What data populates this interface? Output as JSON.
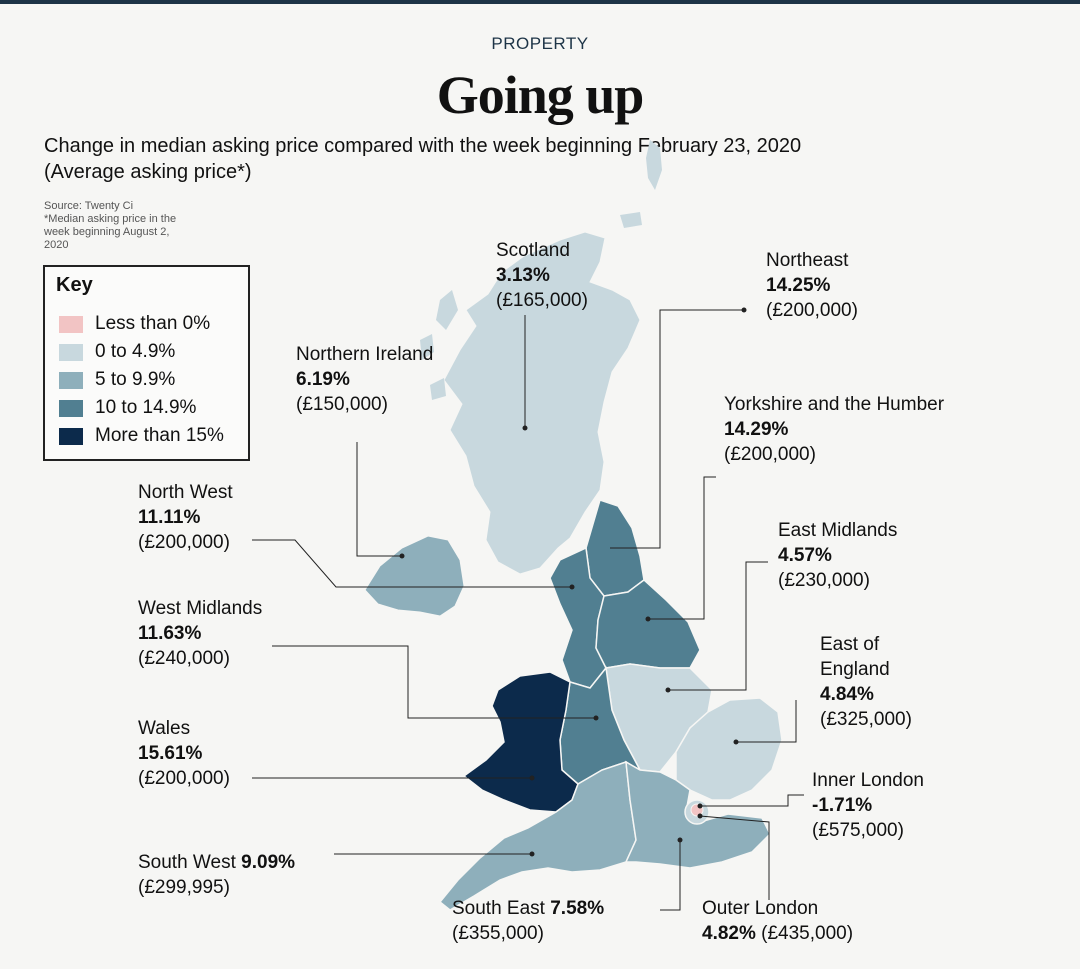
{
  "header": {
    "section": "PROPERTY",
    "title": "Going up",
    "subtitle_line1": "Change in median asking price compared with the week beginning February 23, 2020",
    "subtitle_line2": "(Average asking price*)",
    "source_line1": "Source: Twenty Ci",
    "source_line2": "*Median asking price in the",
    "source_line3": "week beginning August 2,",
    "source_line4": "2020"
  },
  "key": {
    "title": "Key",
    "items": [
      {
        "label": "Less than 0%",
        "color": "#f2c4c4"
      },
      {
        "label": "0 to 4.9%",
        "color": "#c8d8de"
      },
      {
        "label": "5 to 9.9%",
        "color": "#8eafbb"
      },
      {
        "label": "10 to 14.9%",
        "color": "#517f91"
      },
      {
        "label": "More than 15%",
        "color": "#0c2a4b"
      }
    ]
  },
  "regions": {
    "scotland": {
      "name": "Scotland",
      "change": "3.13%",
      "price": "(£165,000)"
    },
    "northeast": {
      "name": "Northeast",
      "change": "14.25%",
      "price": "(£200,000)"
    },
    "northern_ireland": {
      "name": "Northern Ireland",
      "change": "6.19%",
      "price": "(£150,000)"
    },
    "yorkshire": {
      "name": "Yorkshire and the Humber",
      "change": "14.29%",
      "price": "(£200,000)"
    },
    "north_west": {
      "name": "North West",
      "change": "11.11%",
      "price": "(£200,000)"
    },
    "east_midlands": {
      "name": "East Midlands",
      "change": "4.57%",
      "price": "(£230,000)"
    },
    "west_midlands": {
      "name": "West Midlands",
      "change": "11.63%",
      "price": "(£240,000)"
    },
    "east_of_england": {
      "name_line1": "East of",
      "name_line2": "England",
      "change": "4.84%",
      "price": "(£325,000)"
    },
    "wales": {
      "name": "Wales",
      "change": "15.61%",
      "price": "(£200,000)"
    },
    "inner_london": {
      "name": "Inner London",
      "change": "-1.71%",
      "price": "(£575,000)"
    },
    "south_west": {
      "name": "South West",
      "change": "9.09%",
      "price": "(£299,995)"
    },
    "south_east": {
      "name": "South East",
      "change": "7.58%",
      "price": "(£355,000)"
    },
    "outer_london": {
      "name": "Outer London",
      "change": "4.82%",
      "price": "(£435,000)"
    }
  },
  "colors": {
    "less_than_0": "#f2c4c4",
    "band_0_5": "#c8d8de",
    "band_5_10": "#8eafbb",
    "band_10_15": "#517f91",
    "band_15_plus": "#0c2a4b"
  }
}
